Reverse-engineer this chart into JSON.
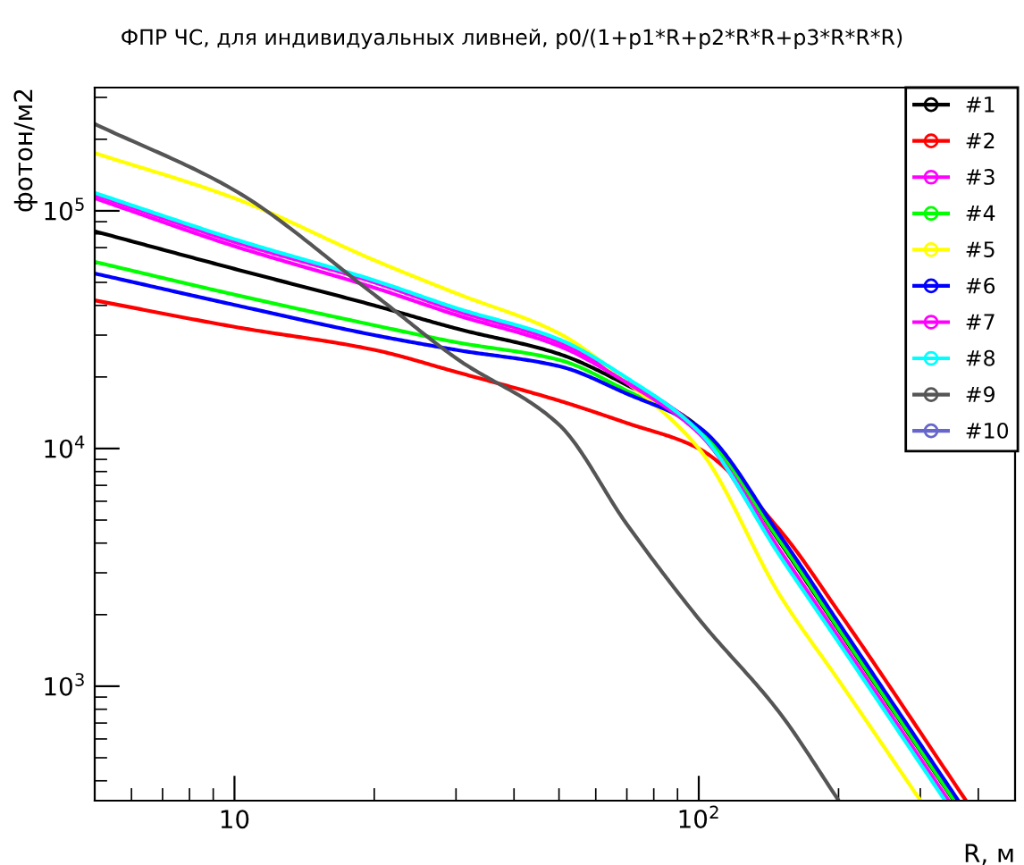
{
  "chart_data": {
    "type": "line",
    "title": "ФПР ЧС, для индивидуальных ливней, p0/(1+p1*R+p2*R*R+p3*R*R*R)",
    "xlabel": "R, м",
    "ylabel": "фотон/м2",
    "log": "xy",
    "grid": false,
    "legend": "top right",
    "marker": "none",
    "line_style": "solid",
    "xlim": [
      5,
      480
    ],
    "ylim": [
      330,
      330000
    ],
    "xticks": [
      {
        "value": 10,
        "label": "10"
      },
      {
        "value": 100,
        "label": "10$^{2}$"
      }
    ],
    "yticks": [
      {
        "value": 1000,
        "label": "10$^{3}$"
      },
      {
        "value": 10000,
        "label": "10$^{4}$"
      },
      {
        "value": 100000,
        "label": "10$^{5}$"
      }
    ],
    "series": [
      {
        "name": "#1",
        "color": "#000000",
        "x": [
          5,
          10,
          20,
          30,
          50,
          70,
          100,
          150,
          200,
          354
        ],
        "values": [
          82000,
          57000,
          40000,
          32000,
          25000,
          18500,
          12300,
          4000,
          1730,
          331
        ]
      },
      {
        "name": "#2",
        "color": "#ff0000",
        "x": [
          5,
          10,
          20,
          30,
          50,
          70,
          100,
          150,
          200,
          376
        ],
        "values": [
          42000,
          32500,
          26000,
          21000,
          15900,
          12800,
          10000,
          4500,
          2060,
          331
        ]
      },
      {
        "name": "#3",
        "color": "#ff00ff",
        "x": [
          5,
          10,
          20,
          30,
          50,
          70,
          100,
          150,
          200,
          345
        ],
        "values": [
          117000,
          74000,
          50000,
          38000,
          28000,
          19500,
          12000,
          3700,
          1610,
          331
        ]
      },
      {
        "name": "#4",
        "color": "#00ff00",
        "x": [
          5,
          10,
          20,
          30,
          50,
          70,
          100,
          150,
          200,
          355
        ],
        "values": [
          61000,
          44400,
          33000,
          28000,
          23600,
          17500,
          12000,
          4050,
          1750,
          331
        ]
      },
      {
        "name": "#5",
        "color": "#ffff00",
        "x": [
          5,
          10,
          20,
          30,
          50,
          70,
          100,
          150,
          200,
          300
        ],
        "values": [
          175000,
          113000,
          62000,
          45000,
          30500,
          19000,
          10000,
          2390,
          1060,
          331
        ]
      },
      {
        "name": "#6",
        "color": "#0000ff",
        "x": [
          5,
          10,
          20,
          30,
          50,
          70,
          100,
          150,
          200,
          362
        ],
        "values": [
          54500,
          40200,
          30000,
          26000,
          22200,
          17000,
          12300,
          4270,
          1850,
          331
        ]
      },
      {
        "name": "#7",
        "color": "#ff00ff",
        "x": [
          5,
          10,
          20,
          30,
          50,
          70,
          100,
          150,
          200,
          341
        ],
        "values": [
          113000,
          71000,
          47500,
          36500,
          27000,
          18900,
          11600,
          3550,
          1560,
          331
        ]
      },
      {
        "name": "#8",
        "color": "#00ffff",
        "x": [
          5,
          10,
          20,
          30,
          50,
          70,
          100,
          150,
          200,
          339
        ],
        "values": [
          119000,
          76000,
          51000,
          39000,
          28800,
          19800,
          11800,
          3500,
          1530,
          331
        ]
      },
      {
        "name": "#9",
        "color": "#555555",
        "x": [
          5,
          10,
          20,
          30,
          50,
          70,
          100,
          150,
          200
        ],
        "values": [
          232000,
          122000,
          44400,
          24000,
          12600,
          4800,
          1920,
          764,
          331
        ]
      },
      {
        "name": "#10",
        "color": "#6666cc"
      }
    ]
  }
}
